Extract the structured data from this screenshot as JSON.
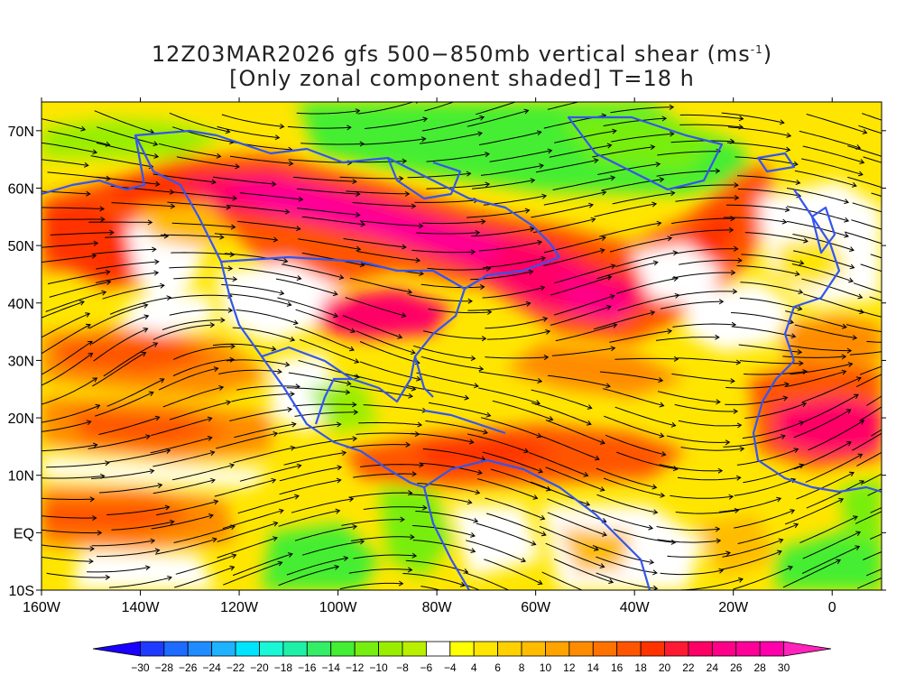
{
  "title": {
    "line1_prefix": "12Z03MAR2026 gfs 500−850mb vertical shear (ms",
    "line1_sup": "-1",
    "line1_suffix": ")",
    "line2": "[Only zonal component shaded] T=18 h"
  },
  "map": {
    "lon_range": [
      -160,
      10
    ],
    "lat_range": [
      -10,
      75
    ],
    "lon_ticks": [
      {
        "value": -160,
        "label": "160W"
      },
      {
        "value": -140,
        "label": "140W"
      },
      {
        "value": -120,
        "label": "120W"
      },
      {
        "value": -100,
        "label": "100W"
      },
      {
        "value": -80,
        "label": "80W"
      },
      {
        "value": -60,
        "label": "60W"
      },
      {
        "value": -40,
        "label": "40W"
      },
      {
        "value": -20,
        "label": "20W"
      },
      {
        "value": 0,
        "label": "0"
      }
    ],
    "lat_ticks": [
      {
        "value": 70,
        "label": "70N"
      },
      {
        "value": 60,
        "label": "60N"
      },
      {
        "value": 50,
        "label": "50N"
      },
      {
        "value": 40,
        "label": "40N"
      },
      {
        "value": 30,
        "label": "30N"
      },
      {
        "value": 20,
        "label": "20N"
      },
      {
        "value": 10,
        "label": "10N"
      },
      {
        "value": 0,
        "label": "EQ"
      },
      {
        "value": -10,
        "label": "10S"
      }
    ],
    "coastline_color": "#3355ee",
    "streamline_color": "#000000"
  },
  "colorbar": {
    "labels": [
      "-30",
      "-28",
      "-26",
      "-24",
      "-22",
      "-20",
      "-18",
      "-16",
      "-14",
      "-12",
      "-10",
      "-8",
      "-6",
      "-4",
      "4",
      "6",
      "8",
      "10",
      "12",
      "14",
      "16",
      "18",
      "20",
      "22",
      "24",
      "26",
      "28",
      "30"
    ],
    "colors": [
      "#1a00ff",
      "#1f3bff",
      "#1e6bff",
      "#1f8cff",
      "#1fb2ff",
      "#00e5ff",
      "#19f7d7",
      "#1ff0a8",
      "#33ee66",
      "#44ee33",
      "#77ee11",
      "#99ee00",
      "#b8f000",
      "#ffffff",
      "#ffff00",
      "#ffe600",
      "#ffd100",
      "#ffbc00",
      "#ffa300",
      "#ff8c00",
      "#ff7200",
      "#ff5500",
      "#ff3300",
      "#ff1a33",
      "#ff0066",
      "#ff0088",
      "#ff0099",
      "#ff00aa",
      "#ff22bb"
    ]
  }
}
